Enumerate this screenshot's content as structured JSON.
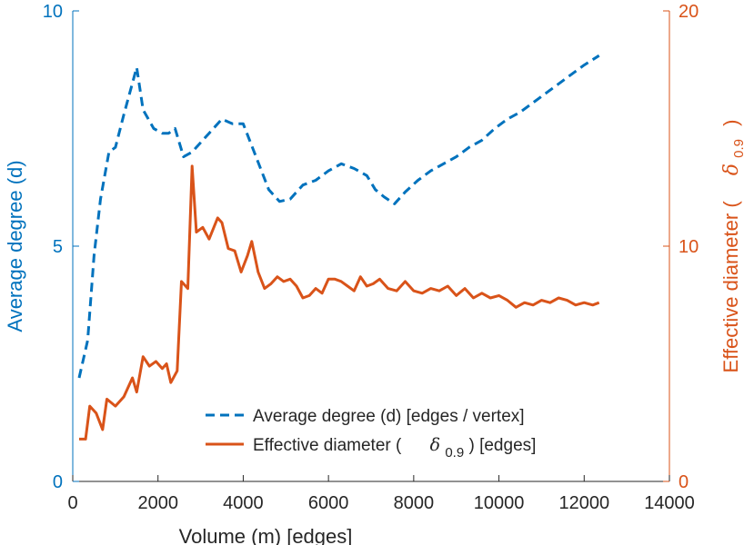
{
  "chart_data": {
    "type": "line",
    "xlabel": "Volume (m) [edges]",
    "xlim": [
      0,
      14000
    ],
    "x_ticks": [
      "0",
      "2000",
      "4000",
      "6000",
      "8000",
      "10000",
      "12000",
      "14000"
    ],
    "y_left": {
      "label": "Average degree (d)",
      "lim": [
        0,
        10
      ],
      "ticks": [
        "0",
        "5",
        "10"
      ],
      "color": "#0072BD"
    },
    "y_right": {
      "label_prefix": "Effective diameter (",
      "label_symbol": "δ",
      "label_sub": "0.9",
      "label_suffix": ")",
      "lim": [
        0,
        20
      ],
      "ticks": [
        "0",
        "10",
        "20"
      ],
      "color": "#D95319"
    },
    "legend": {
      "placement": "bottom-center",
      "entries": [
        {
          "text": "Average degree (d) [edges / vertex]"
        },
        {
          "prefix": "Effective diameter (",
          "symbol": "δ",
          "sub": "0.9",
          "suffix": ") [edges]"
        }
      ]
    },
    "grid": false,
    "series": [
      {
        "axis": "left",
        "style": "dashed",
        "color": "#0072BD",
        "x": [
          150,
          350,
          500,
          650,
          850,
          1000,
          1200,
          1500,
          1650,
          1900,
          2100,
          2250,
          2400,
          2600,
          2800,
          3000,
          3200,
          3500,
          3750,
          4000,
          4300,
          4600,
          4850,
          5100,
          5400,
          5700,
          6000,
          6300,
          6600,
          6900,
          7100,
          7300,
          7550,
          7800,
          8100,
          8400,
          8700,
          9000,
          9300,
          9600,
          9900,
          10200,
          10500,
          10800,
          11100,
          11400,
          11700,
          12000,
          12350
        ],
        "y": [
          2.2,
          3.0,
          4.8,
          6.0,
          7.0,
          7.1,
          7.8,
          8.8,
          7.9,
          7.5,
          7.4,
          7.4,
          7.5,
          6.9,
          7.0,
          7.2,
          7.4,
          7.7,
          7.6,
          7.6,
          6.9,
          6.2,
          5.95,
          6.0,
          6.3,
          6.4,
          6.6,
          6.75,
          6.65,
          6.5,
          6.2,
          6.05,
          5.9,
          6.15,
          6.4,
          6.6,
          6.75,
          6.9,
          7.1,
          7.25,
          7.5,
          7.7,
          7.85,
          8.05,
          8.25,
          8.45,
          8.65,
          8.85,
          9.05
        ]
      },
      {
        "axis": "right",
        "style": "solid",
        "color": "#D95319",
        "x": [
          150,
          300,
          400,
          550,
          700,
          800,
          1000,
          1200,
          1400,
          1500,
          1650,
          1800,
          1950,
          2100,
          2200,
          2300,
          2450,
          2550,
          2700,
          2800,
          2900,
          3050,
          3200,
          3400,
          3500,
          3650,
          3800,
          3950,
          4100,
          4200,
          4350,
          4500,
          4650,
          4800,
          4950,
          5100,
          5250,
          5400,
          5550,
          5700,
          5850,
          6000,
          6150,
          6300,
          6450,
          6600,
          6750,
          6900,
          7050,
          7200,
          7400,
          7600,
          7800,
          8000,
          8200,
          8400,
          8600,
          8800,
          9000,
          9200,
          9400,
          9600,
          9800,
          10000,
          10200,
          10400,
          10600,
          10800,
          11000,
          11200,
          11400,
          11600,
          11800,
          12000,
          12200,
          12350
        ],
        "y": [
          1.8,
          1.8,
          3.2,
          2.9,
          2.2,
          3.5,
          3.2,
          3.6,
          4.4,
          3.8,
          5.3,
          4.9,
          5.1,
          4.8,
          5.0,
          4.2,
          4.7,
          8.5,
          8.2,
          13.4,
          10.6,
          10.8,
          10.3,
          11.2,
          11.0,
          9.9,
          9.8,
          8.9,
          9.6,
          10.2,
          8.9,
          8.2,
          8.4,
          8.7,
          8.5,
          8.6,
          8.3,
          7.8,
          7.9,
          8.2,
          8.0,
          8.6,
          8.6,
          8.5,
          8.3,
          8.1,
          8.7,
          8.3,
          8.4,
          8.6,
          8.2,
          8.1,
          8.5,
          8.1,
          8.0,
          8.2,
          8.1,
          8.3,
          7.9,
          8.2,
          7.8,
          8.0,
          7.8,
          7.9,
          7.7,
          7.4,
          7.6,
          7.5,
          7.7,
          7.6,
          7.8,
          7.7,
          7.5,
          7.6,
          7.5,
          7.6
        ]
      }
    ]
  }
}
